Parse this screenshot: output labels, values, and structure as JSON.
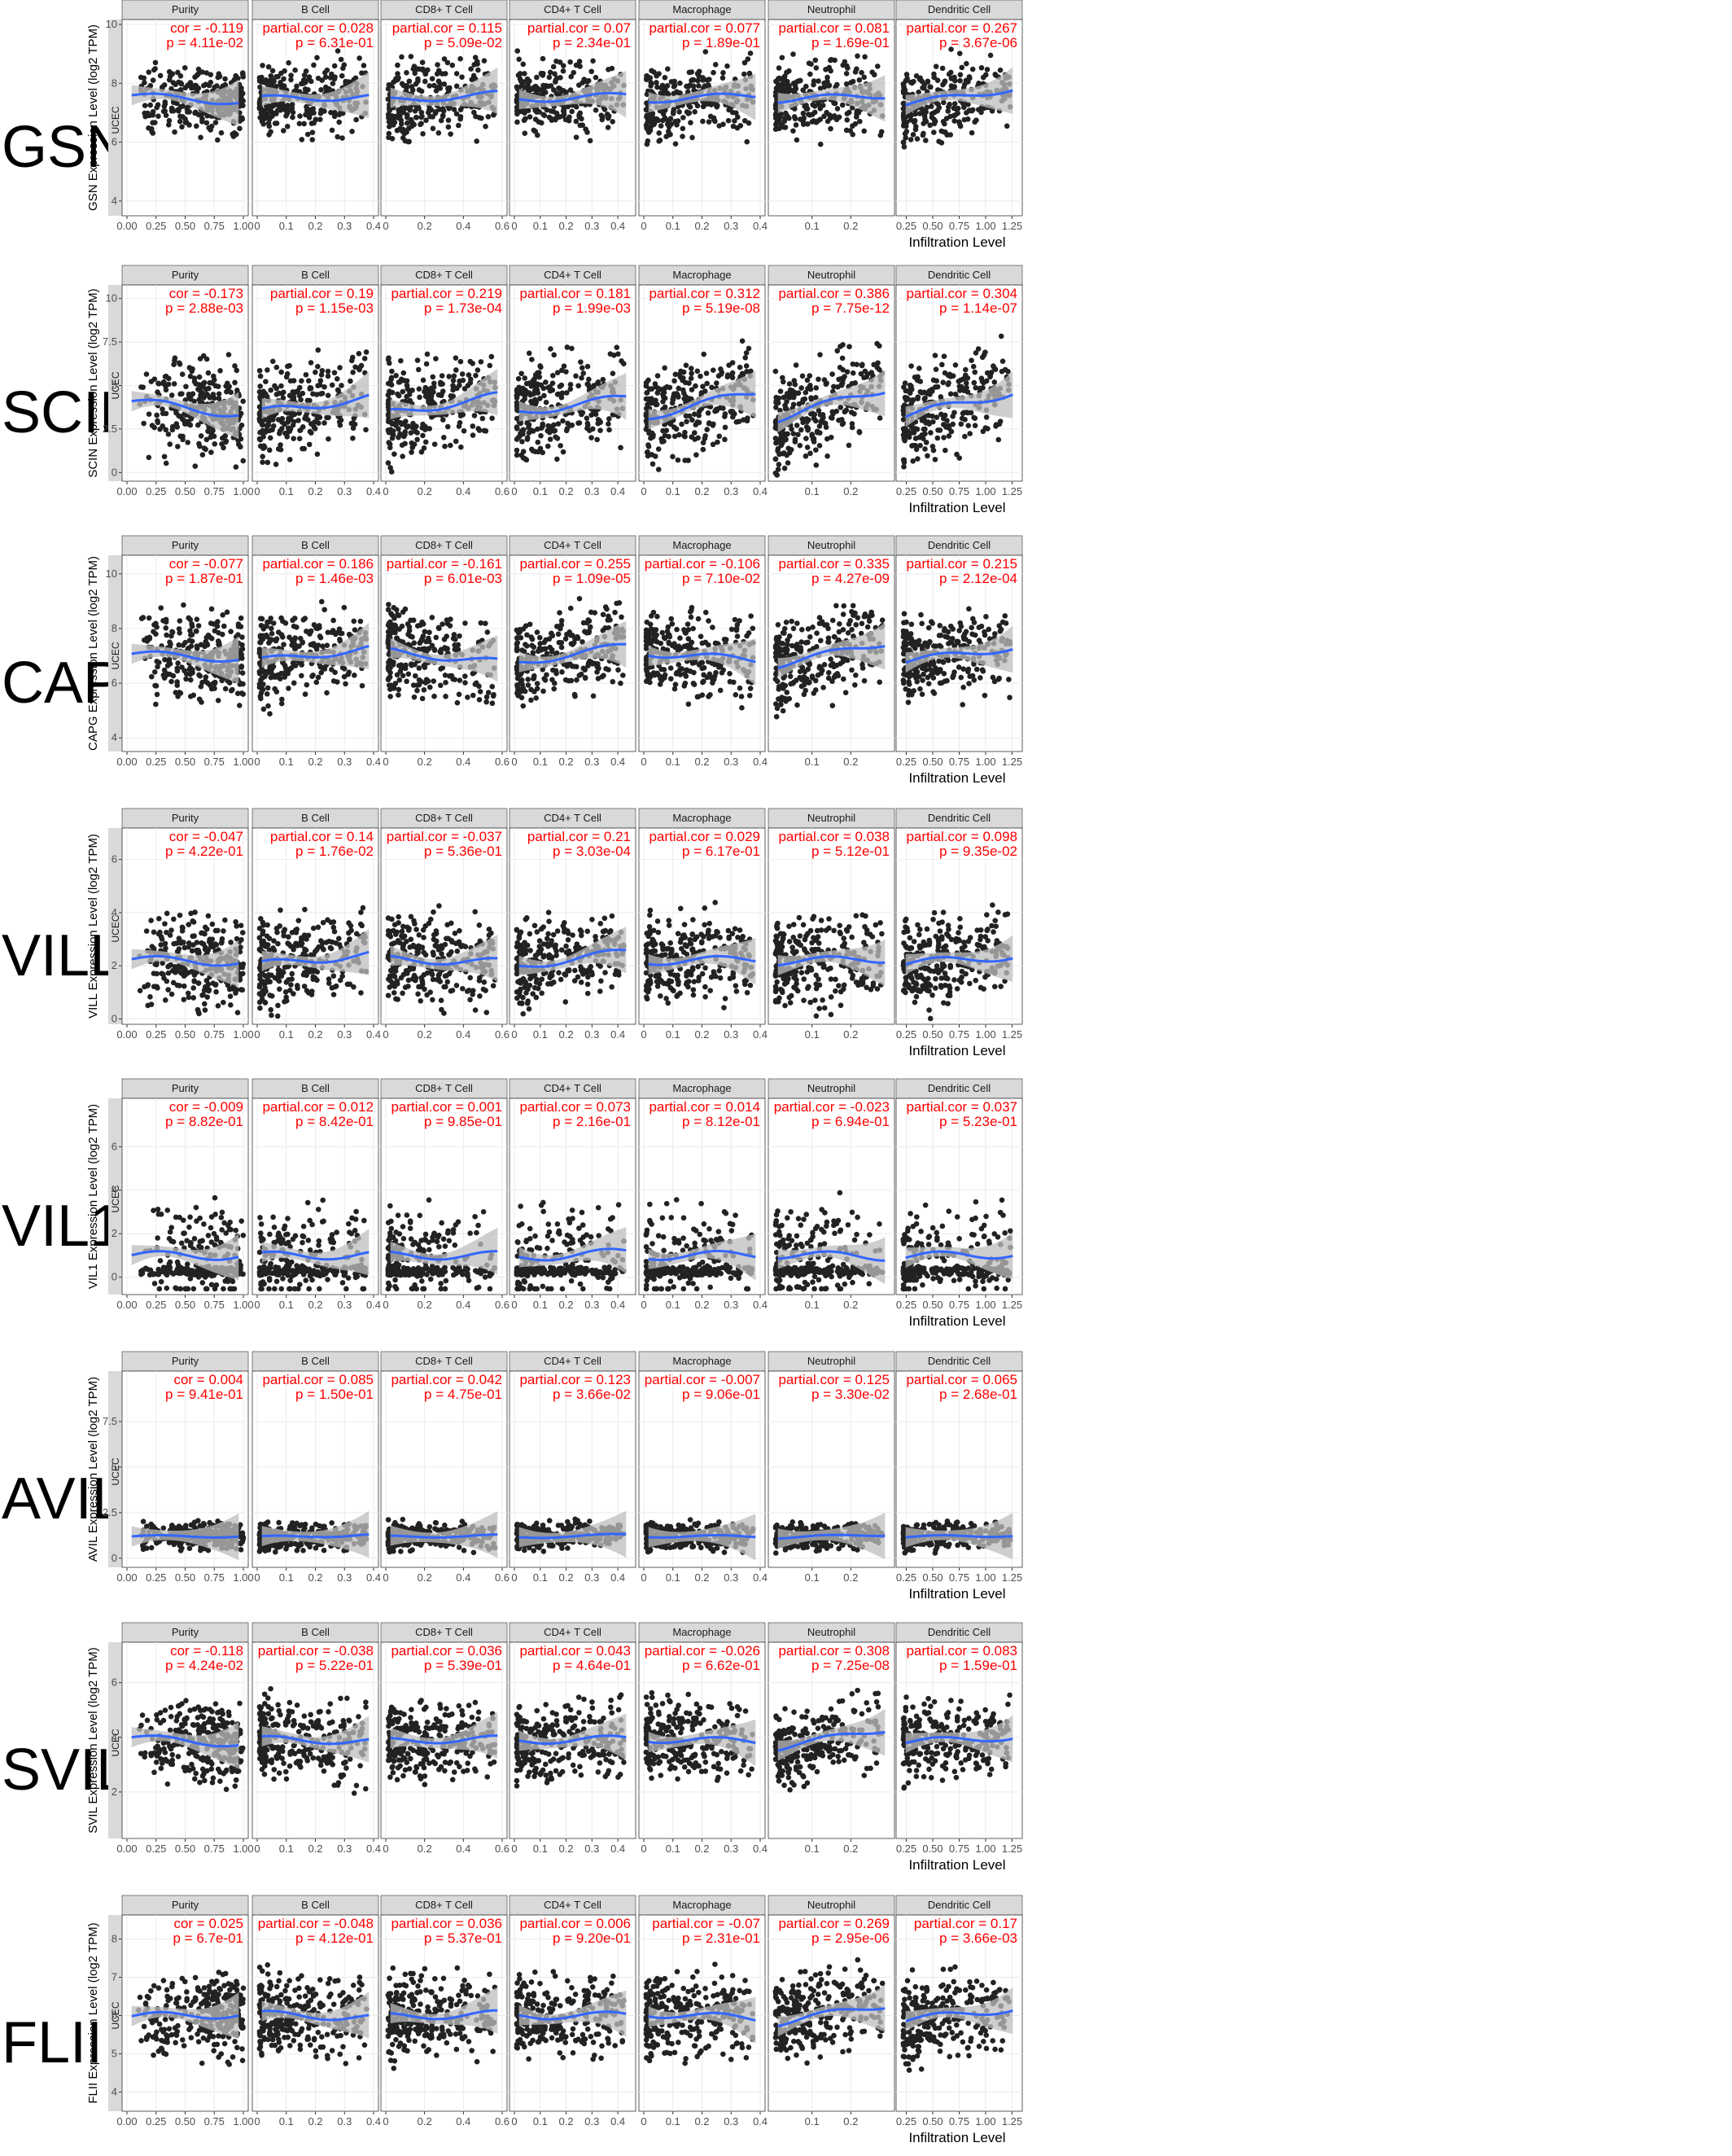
{
  "figure": {
    "cancer": "UCEC",
    "x_axis_title": "Infiltration Level",
    "panels": [
      "Purity",
      "B Cell",
      "CD8+ T Cell",
      "CD4+ T Cell",
      "Macrophage",
      "Neutrophil",
      "Dendritic Cell"
    ]
  },
  "chart_data": {
    "type": "scatter",
    "x_axes": {
      "Purity": {
        "xlim": [
          0,
          1
        ],
        "ticks": [
          "0.00",
          "0.25",
          "0.50",
          "0.75",
          "1.00"
        ]
      },
      "B Cell": {
        "xlim": [
          0,
          0.4
        ],
        "ticks": [
          "0",
          "0.1",
          "0.2",
          "0.3",
          "0.4"
        ]
      },
      "CD8+ T Cell": {
        "xlim": [
          0,
          0.6
        ],
        "ticks": [
          "0",
          "0.2",
          "0.4",
          "0.6"
        ]
      },
      "CD4+ T Cell": {
        "xlim": [
          0,
          0.45
        ],
        "ticks": [
          "0",
          "0.1",
          "0.2",
          "0.3",
          "0.4"
        ]
      },
      "Macrophage": {
        "xlim": [
          0,
          0.4
        ],
        "ticks": [
          "0",
          "0.1",
          "0.2",
          "0.3",
          "0.4"
        ]
      },
      "Neutrophil": {
        "xlim": [
          0,
          0.3
        ],
        "ticks": [
          "0.1",
          "0.2"
        ]
      },
      "Dendritic Cell": {
        "xlim": [
          0.2,
          1.3
        ],
        "ticks": [
          "0.25",
          "0.50",
          "0.75",
          "1.00",
          "1.25"
        ]
      }
    },
    "genes": [
      {
        "gene": "GSN",
        "ylabel": "GSN Expression Level (log2 TPM)",
        "ylim": [
          3.5,
          10
        ],
        "yticks": [
          4,
          6,
          8,
          10
        ],
        "stats": [
          {
            "r": "cor = -0.119",
            "p": "p = 4.11e-02"
          },
          {
            "r": "partial.cor = 0.028",
            "p": "p = 6.31e-01"
          },
          {
            "r": "partial.cor = 0.115",
            "p": "p = 5.09e-02"
          },
          {
            "r": "partial.cor = 0.07",
            "p": "p = 2.34e-01"
          },
          {
            "r": "partial.cor = 0.077",
            "p": "p = 1.89e-01"
          },
          {
            "r": "partial.cor = 0.081",
            "p": "p = 1.69e-01"
          },
          {
            "r": "partial.cor = 0.267",
            "p": "p = 3.67e-06"
          }
        ]
      },
      {
        "gene": "SCIN",
        "ylabel": "SCIN Expression Level (log2 TPM)",
        "ylim": [
          -0.5,
          10.5
        ],
        "yticks": [
          0,
          2.5,
          5,
          7.5,
          10
        ],
        "stats": [
          {
            "r": "cor = -0.173",
            "p": "p = 2.88e-03"
          },
          {
            "r": "partial.cor = 0.19",
            "p": "p = 1.15e-03"
          },
          {
            "r": "partial.cor = 0.219",
            "p": "p = 1.73e-04"
          },
          {
            "r": "partial.cor = 0.181",
            "p": "p = 1.99e-03"
          },
          {
            "r": "partial.cor = 0.312",
            "p": "p = 5.19e-08"
          },
          {
            "r": "partial.cor = 0.386",
            "p": "p = 7.75e-12"
          },
          {
            "r": "partial.cor = 0.304",
            "p": "p = 1.14e-07"
          }
        ]
      },
      {
        "gene": "CAPG",
        "ylabel": "CAPG Expression Level (log2 TPM)",
        "ylim": [
          3.5,
          10.5
        ],
        "yticks": [
          4,
          6,
          8,
          10
        ],
        "stats": [
          {
            "r": "cor = -0.077",
            "p": "p = 1.87e-01"
          },
          {
            "r": "partial.cor = 0.186",
            "p": "p = 1.46e-03"
          },
          {
            "r": "partial.cor = -0.161",
            "p": "p = 6.01e-03"
          },
          {
            "r": "partial.cor = 0.255",
            "p": "p = 1.09e-05"
          },
          {
            "r": "partial.cor = -0.106",
            "p": "p = 7.10e-02"
          },
          {
            "r": "partial.cor = 0.335",
            "p": "p = 4.27e-09"
          },
          {
            "r": "partial.cor = 0.215",
            "p": "p = 2.12e-04"
          }
        ]
      },
      {
        "gene": "VILL",
        "ylabel": "VILL Expression Level (log2 TPM)",
        "ylim": [
          -0.2,
          7
        ],
        "yticks": [
          0,
          2,
          4,
          6
        ],
        "stats": [
          {
            "r": "cor = -0.047",
            "p": "p = 4.22e-01"
          },
          {
            "r": "partial.cor = 0.14",
            "p": "p = 1.76e-02"
          },
          {
            "r": "partial.cor = -0.037",
            "p": "p = 5.36e-01"
          },
          {
            "r": "partial.cor = 0.21",
            "p": "p = 3.03e-04"
          },
          {
            "r": "partial.cor = 0.029",
            "p": "p = 6.17e-01"
          },
          {
            "r": "partial.cor = 0.038",
            "p": "p = 5.12e-01"
          },
          {
            "r": "partial.cor = 0.098",
            "p": "p = 9.35e-02"
          }
        ]
      },
      {
        "gene": "VIL1",
        "ylabel": "VIL1 Expression Level (log2 TPM)",
        "ylim": [
          -0.8,
          8
        ],
        "yticks": [
          0,
          2,
          4,
          6
        ],
        "stats": [
          {
            "r": "cor = -0.009",
            "p": "p = 8.82e-01"
          },
          {
            "r": "partial.cor = 0.012",
            "p": "p = 8.42e-01"
          },
          {
            "r": "partial.cor = 0.001",
            "p": "p = 9.85e-01"
          },
          {
            "r": "partial.cor = 0.073",
            "p": "p = 2.16e-01"
          },
          {
            "r": "partial.cor = 0.014",
            "p": "p = 8.12e-01"
          },
          {
            "r": "partial.cor = -0.023",
            "p": "p = 6.94e-01"
          },
          {
            "r": "partial.cor = 0.037",
            "p": "p = 5.23e-01"
          }
        ]
      },
      {
        "gene": "AVIL",
        "ylabel": "AVIL Expression Level (log2 TPM)",
        "ylim": [
          -0.5,
          10
        ],
        "yticks": [
          0,
          2.5,
          5,
          7.5
        ],
        "stats": [
          {
            "r": "cor = 0.004",
            "p": "p = 9.41e-01"
          },
          {
            "r": "partial.cor = 0.085",
            "p": "p = 1.50e-01"
          },
          {
            "r": "partial.cor = 0.042",
            "p": "p = 4.75e-01"
          },
          {
            "r": "partial.cor = 0.123",
            "p": "p = 3.66e-02"
          },
          {
            "r": "partial.cor = -0.007",
            "p": "p = 9.06e-01"
          },
          {
            "r": "partial.cor = 0.125",
            "p": "p = 3.30e-02"
          },
          {
            "r": "partial.cor = 0.065",
            "p": "p = 2.68e-01"
          }
        ]
      },
      {
        "gene": "SVIL",
        "ylabel": "SVIL Expression Level (log2 TPM)",
        "ylim": [
          0.3,
          7.3
        ],
        "yticks": [
          2,
          4,
          6
        ],
        "stats": [
          {
            "r": "cor = -0.118",
            "p": "p = 4.24e-02"
          },
          {
            "r": "partial.cor = -0.038",
            "p": "p = 5.22e-01"
          },
          {
            "r": "partial.cor = 0.036",
            "p": "p = 5.39e-01"
          },
          {
            "r": "partial.cor = 0.043",
            "p": "p = 4.64e-01"
          },
          {
            "r": "partial.cor = -0.026",
            "p": "p = 6.62e-01"
          },
          {
            "r": "partial.cor = 0.308",
            "p": "p = 7.25e-08"
          },
          {
            "r": "partial.cor = 0.083",
            "p": "p = 1.59e-01"
          }
        ]
      },
      {
        "gene": "FLII",
        "ylabel": "FLII Expression Level (log2 TPM)",
        "ylim": [
          3.5,
          8.5
        ],
        "yticks": [
          4,
          5,
          6,
          7,
          8
        ],
        "stats": [
          {
            "r": "cor = 0.025",
            "p": "p = 6.7e-01"
          },
          {
            "r": "partial.cor = -0.048",
            "p": "p = 4.12e-01"
          },
          {
            "r": "partial.cor = 0.036",
            "p": "p = 5.37e-01"
          },
          {
            "r": "partial.cor = 0.006",
            "p": "p = 9.20e-01"
          },
          {
            "r": "partial.cor = -0.07",
            "p": "p = 2.31e-01"
          },
          {
            "r": "partial.cor = 0.269",
            "p": "p = 2.95e-06"
          },
          {
            "r": "partial.cor = 0.17",
            "p": "p = 3.66e-03"
          }
        ]
      }
    ],
    "point_model": {
      "n_points_per_panel": 280,
      "baseline_y": {
        "GSN": 7.5,
        "SCIN": 3.8,
        "CAPG": 7.0,
        "VILL": 2.2,
        "VIL1": 1.0,
        "AVIL": 1.2,
        "SVIL": 3.9,
        "FLII": 6.0
      },
      "spread_y": {
        "GSN": 0.9,
        "SCIN": 2.0,
        "CAPG": 1.1,
        "VILL": 1.2,
        "VIL1": 1.6,
        "AVIL": 0.55,
        "SVIL": 1.0,
        "FLII": 0.8
      }
    },
    "colors": {
      "points": "#222222",
      "fit_line": "#3366ff",
      "ci_band": "#bdbdbd",
      "stat_text": "#ff0000",
      "strip_bg": "#d9d9d9",
      "side_strip_bg": "#d9d9d9",
      "grid": "#ebebeb"
    }
  }
}
